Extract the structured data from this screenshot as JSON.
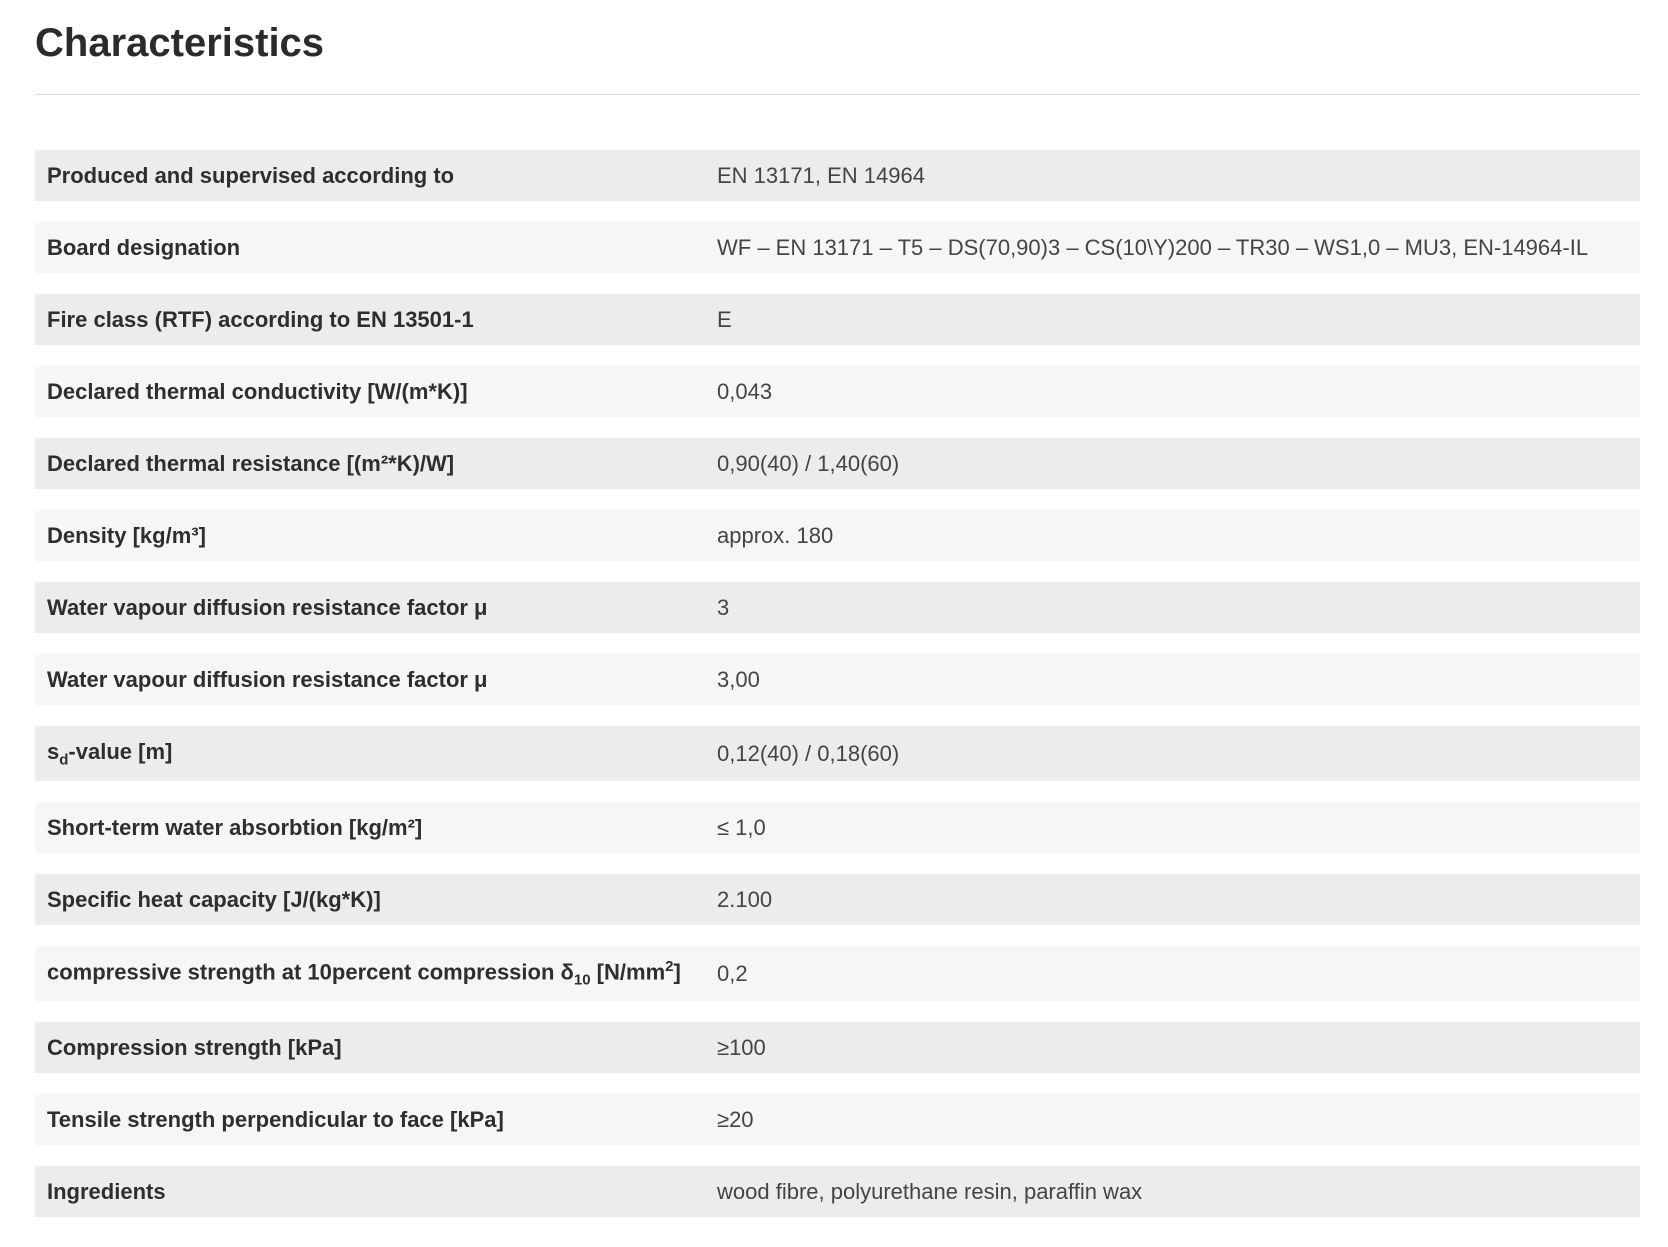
{
  "title": "Characteristics",
  "rows": [
    {
      "label": "Produced and supervised according to",
      "value": "EN 13171, EN 14964"
    },
    {
      "label": "Board designation",
      "value": "WF – EN 13171 – T5 – DS(70,90)3 – CS(10\\Y)200 – TR30 – WS1,0 – MU3, EN-14964-IL"
    },
    {
      "label": "Fire class (RTF) according to EN 13501-1",
      "value": "E"
    },
    {
      "label": "Declared thermal conductivity [W/(m*K)]",
      "value": "0,043"
    },
    {
      "label": "Declared thermal resistance [(m²*K)/W]",
      "value": "0,90(40) / 1,40(60)"
    },
    {
      "label": "Density [kg/m³]",
      "value": "approx. 180"
    },
    {
      "label": "Water vapour diffusion resistance factor μ",
      "value": "3"
    },
    {
      "label": "Water vapour diffusion resistance factor μ",
      "value": "3,00"
    },
    {
      "label_main": "s",
      "label_sub": "d",
      "label_rest": "-value [m]",
      "value": "0,12(40) / 0,18(60)"
    },
    {
      "label": "Short-term water absorbtion [kg/m²]",
      "value": "≤ 1,0"
    },
    {
      "label": "Specific heat capacity [J/(kg*K)]",
      "value": "2.100"
    },
    {
      "label_main": "compressive strength at 10percent compression δ",
      "label_sub": "10",
      "label_mid": " [N/mm",
      "label_sup": "2",
      "label_rest": "]",
      "value": "0,2"
    },
    {
      "label": "Compression strength [kPa]",
      "value": "≥100"
    },
    {
      "label": "Tensile strength perpendicular to face [kPa]",
      "value": "≥20"
    },
    {
      "label": "Ingredients",
      "value": "wood fibre, polyurethane resin, paraffin wax"
    }
  ]
}
